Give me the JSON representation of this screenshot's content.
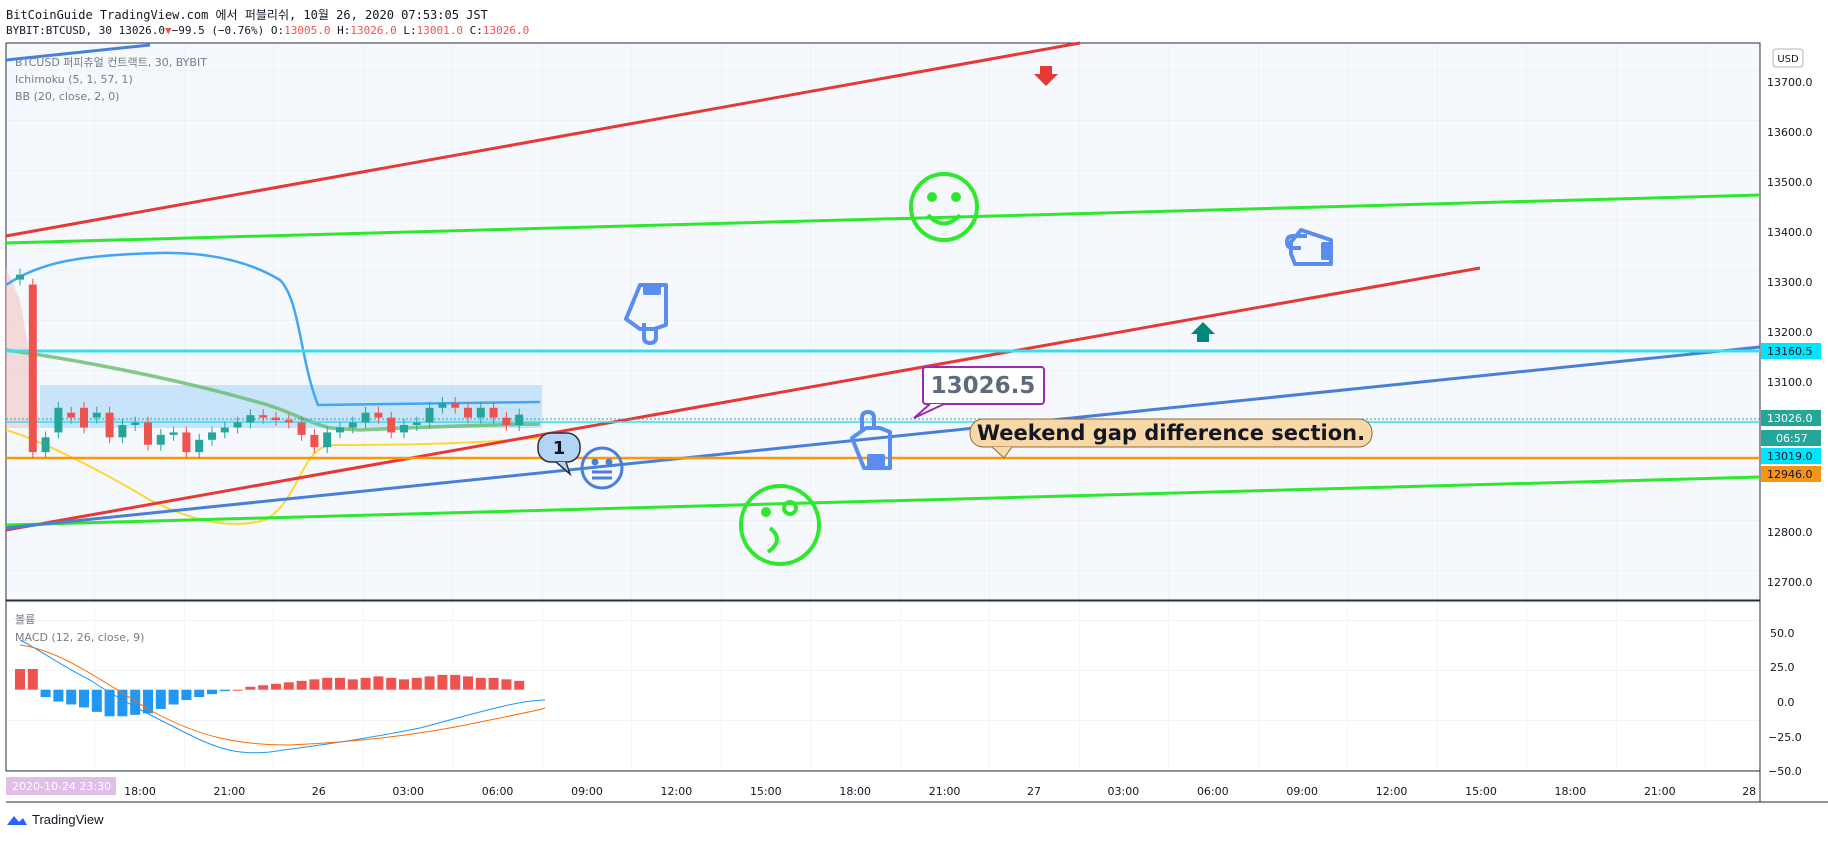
{
  "header": {
    "line1": "BitCoinGuide TradingView.com 에서 퍼블리쉬, 10월 26, 2020 07:53:05 JST",
    "symbol": "BYBIT:BTCUSD, 30",
    "last": "13026.0",
    "arrow": "▼",
    "change": "−99.5 (−0.76%)",
    "o_label": "O:",
    "o": "13005.0",
    "h_label": "H:",
    "h": "13026.0",
    "l_label": "L:",
    "l": "13001.0",
    "c_label": "C:",
    "c": "13026.0"
  },
  "legend": {
    "title": "BTCUSD 퍼피츄얼 컨트랙트, 30, BYBIT",
    "ichimoku": "Ichimoku (5, 1, 57, 1)",
    "bb": "BB (20, close, 2, 0)",
    "volume": "볼륨",
    "macd": "MACD (12, 26, close, 9)"
  },
  "currency": "USD",
  "price_axis": [
    "13700.0",
    "13600.0",
    "13500.0",
    "13400.0",
    "13300.0",
    "13200.0",
    "13100.0",
    "12800.0",
    "12700.0"
  ],
  "price_badges": [
    {
      "text": "13160.5",
      "bg": "#00e5ff",
      "fg": "#131722"
    },
    {
      "text": "13026.0",
      "bg": "#26a69a",
      "fg": "#ffffff"
    },
    {
      "text": "06:57",
      "bg": "#26a69a",
      "fg": "#ffffff"
    },
    {
      "text": "13019.0",
      "bg": "#00e5ff",
      "fg": "#131722"
    },
    {
      "text": "12946.0",
      "bg": "#f7931a",
      "fg": "#131722"
    }
  ],
  "macd_axis": [
    "50.0",
    "25.0",
    "0.0",
    "−25.0",
    "−50.0"
  ],
  "time_axis": [
    "18:00",
    "21:00",
    "26",
    "03:00",
    "06:00",
    "09:00",
    "12:00",
    "15:00",
    "18:00",
    "21:00",
    "27",
    "03:00",
    "06:00",
    "09:00",
    "12:00",
    "15:00",
    "18:00",
    "21:00",
    "28"
  ],
  "time_badge": "2020-10-24  23:30",
  "annotations": {
    "price_callout": "13026.5",
    "gap_note": "Weekend gap difference section.",
    "counter": "1"
  },
  "footer": "TradingView",
  "colors": {
    "up": "#26a69a",
    "down": "#ef5350",
    "red_line": "#e53935",
    "green_line": "#2ee82e",
    "blue_line": "#4a7fd8",
    "cyan_line": "#33e0f0",
    "orange_line": "#ff9800",
    "accent": "#5b8dee"
  },
  "chart_data": {
    "type": "candlestick",
    "price_range": [
      12650,
      13780
    ],
    "candles_close": [
      13310,
      12950,
      12980,
      13040,
      13020,
      13000,
      13030,
      12980,
      13005,
      13010,
      12965,
      12985,
      12990,
      12950,
      12975,
      12990,
      13000,
      13010,
      13025,
      13020,
      13015,
      13010,
      12985,
      12960,
      12990,
      13000,
      13010,
      13030,
      13020,
      12990,
      13005,
      13010,
      13040,
      13050,
      13040,
      13020,
      13040,
      13020,
      13005,
      13026
    ],
    "candles_open": [
      13300,
      13290,
      12950,
      12990,
      13030,
      13040,
      13020,
      13030,
      12980,
      13005,
      13010,
      12965,
      12985,
      12990,
      12950,
      12975,
      12990,
      13000,
      13010,
      13025,
      13020,
      13015,
      13010,
      12985,
      12960,
      12990,
      13000,
      13010,
      13030,
      13020,
      12990,
      13005,
      13010,
      13040,
      13050,
      13040,
      13020,
      13040,
      13020,
      13005
    ],
    "horizontal_levels": [
      13160.5,
      13019.0,
      12946.0
    ],
    "macd_histogram": [
      14,
      14,
      -5,
      -8,
      -10,
      -12,
      -15,
      -18,
      -18,
      -17,
      -16,
      -13,
      -10,
      -7,
      -5,
      -3,
      -1,
      0,
      2,
      3,
      4,
      5,
      6,
      7,
      8,
      8,
      7,
      8,
      9,
      8,
      7,
      8,
      9,
      10,
      10,
      9,
      8,
      8,
      7,
      6
    ],
    "macd_range": [
      -55,
      60
    ]
  }
}
